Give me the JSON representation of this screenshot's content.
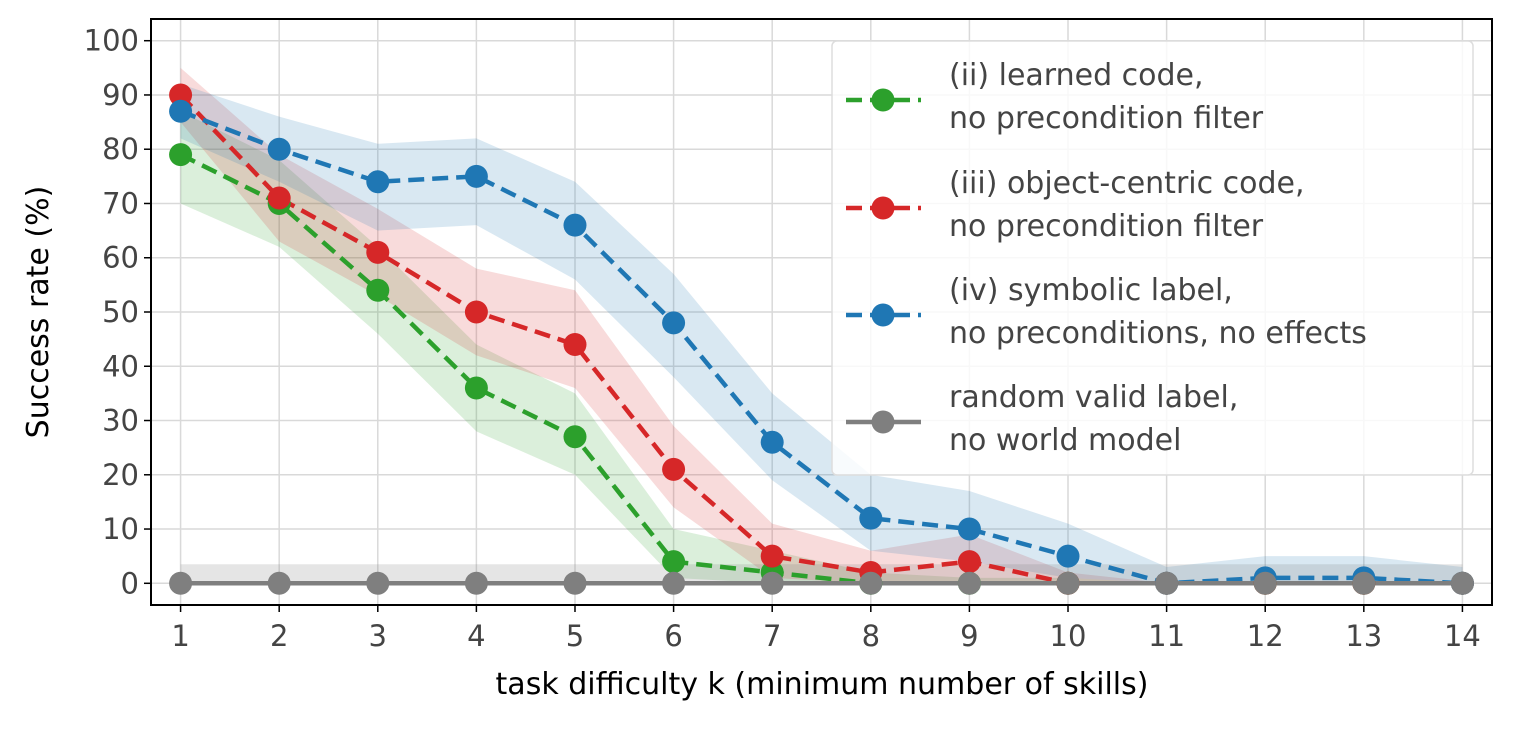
{
  "chart_data": {
    "type": "line",
    "xlabel": "task difficulty k (minimum number of skills)",
    "ylabel": "Success rate (%)",
    "xlim": [
      0.7,
      14.3
    ],
    "ylim": [
      -4,
      104
    ],
    "x_ticks": [
      1,
      2,
      3,
      4,
      5,
      6,
      7,
      8,
      9,
      10,
      11,
      12,
      13,
      14
    ],
    "y_ticks": [
      0,
      10,
      20,
      30,
      40,
      50,
      60,
      70,
      80,
      90,
      100
    ],
    "grid": true,
    "legend_position": "top-right",
    "x": [
      1,
      2,
      3,
      4,
      5,
      6,
      7,
      8,
      9,
      10,
      11,
      12,
      13,
      14
    ],
    "series": [
      {
        "name": "(ii) learned code,\nno precondition filter",
        "color": "#2ca02c",
        "line_style": "dashed",
        "values": [
          79,
          70,
          54,
          36,
          27,
          4,
          2,
          0,
          0,
          0,
          0,
          0,
          0,
          0
        ],
        "band_lower": [
          70,
          62,
          46,
          28,
          20,
          1,
          0,
          0,
          0,
          0,
          0,
          0,
          0,
          0
        ],
        "band_upper": [
          87,
          78,
          62,
          44,
          35,
          10,
          6,
          2,
          1,
          1,
          0,
          0,
          0,
          0
        ]
      },
      {
        "name": "(iii) object-centric code,\nno precondition filter",
        "color": "#d62728",
        "line_style": "dashed",
        "values": [
          90,
          71,
          61,
          50,
          44,
          21,
          5,
          2,
          4,
          0,
          0,
          0,
          0,
          0
        ],
        "band_lower": [
          85,
          63,
          53,
          42,
          36,
          14,
          1,
          0,
          0,
          0,
          0,
          0,
          0,
          0
        ],
        "band_upper": [
          95,
          79,
          69,
          58,
          54,
          29,
          11,
          6,
          9,
          2,
          0,
          0,
          0,
          0
        ]
      },
      {
        "name": "(iv) symbolic label,\nno preconditions, no effects",
        "color": "#1f77b4",
        "line_style": "dashed",
        "values": [
          87,
          80,
          74,
          75,
          66,
          48,
          26,
          12,
          10,
          5,
          0,
          1,
          1,
          0
        ],
        "band_lower": [
          82,
          74,
          65,
          66,
          56,
          38,
          19,
          6,
          4,
          1,
          0,
          0,
          0,
          0
        ],
        "band_upper": [
          92,
          86,
          81,
          82,
          74,
          57,
          35,
          20,
          17,
          11,
          3,
          5,
          5,
          3
        ]
      },
      {
        "name": "random valid label,\nno world model",
        "color": "#7f7f7f",
        "line_style": "solid",
        "values": [
          0,
          0,
          0,
          0,
          0,
          0,
          0,
          0,
          0,
          0,
          0,
          0,
          0,
          0
        ],
        "band_lower": [
          0,
          0,
          0,
          0,
          0,
          0,
          0,
          0,
          0,
          0,
          0,
          0,
          0,
          0
        ],
        "band_upper": [
          3.5,
          3.5,
          3.5,
          3.5,
          3.5,
          3.5,
          3.5,
          3.5,
          3.5,
          3.5,
          3.5,
          3.5,
          3.5,
          3.5
        ]
      }
    ]
  }
}
